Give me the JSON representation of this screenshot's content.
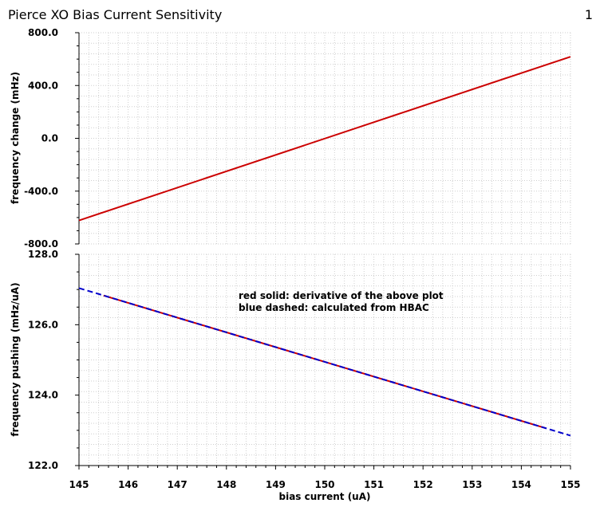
{
  "title": "Pierce XO Bias Current Sensitivity",
  "page_number": "1",
  "chart_data": [
    {
      "type": "line",
      "x": [
        145,
        155
      ],
      "series": [
        {
          "name": "",
          "color": "#cc0000",
          "style": "solid",
          "x": [
            145,
            155
          ],
          "y": [
            -622,
            618
          ]
        }
      ],
      "xlim": [
        145,
        155
      ],
      "ylim": [
        -800,
        800
      ],
      "yticks": [
        -800,
        -400,
        0,
        400,
        800
      ],
      "ytick_labels": [
        "-800.0",
        "-400.0",
        "0.0",
        "400.0",
        "800.0"
      ],
      "xlabel": "",
      "ylabel": "frequency change (mHz)",
      "grid": true
    },
    {
      "type": "line",
      "series": [
        {
          "name": "red solid: derivative of the above plot",
          "color": "#cc0000",
          "style": "solid",
          "x": [
            145.5,
            154.5
          ],
          "y": [
            126.83,
            123.06
          ]
        },
        {
          "name": "blue dashed: calculated from HBAC",
          "color": "#0000cc",
          "style": "dashed",
          "x": [
            145,
            155
          ],
          "y": [
            127.04,
            122.85
          ]
        }
      ],
      "xlim": [
        145,
        155
      ],
      "ylim": [
        122,
        128
      ],
      "xticks": [
        145,
        146,
        147,
        148,
        149,
        150,
        151,
        152,
        153,
        154,
        155
      ],
      "xtick_labels": [
        "145",
        "146",
        "147",
        "148",
        "149",
        "150",
        "151",
        "152",
        "153",
        "154",
        "155"
      ],
      "yticks": [
        122,
        124,
        126,
        128
      ],
      "ytick_labels": [
        "122.0",
        "124.0",
        "126.0",
        "128.0"
      ],
      "xlabel": "bias current (uA)",
      "ylabel": "frequency pushing (mHz/uA)",
      "grid": true,
      "annotation_lines": [
        "red solid: derivative of the above plot",
        "blue dashed: calculated from HBAC"
      ]
    }
  ]
}
